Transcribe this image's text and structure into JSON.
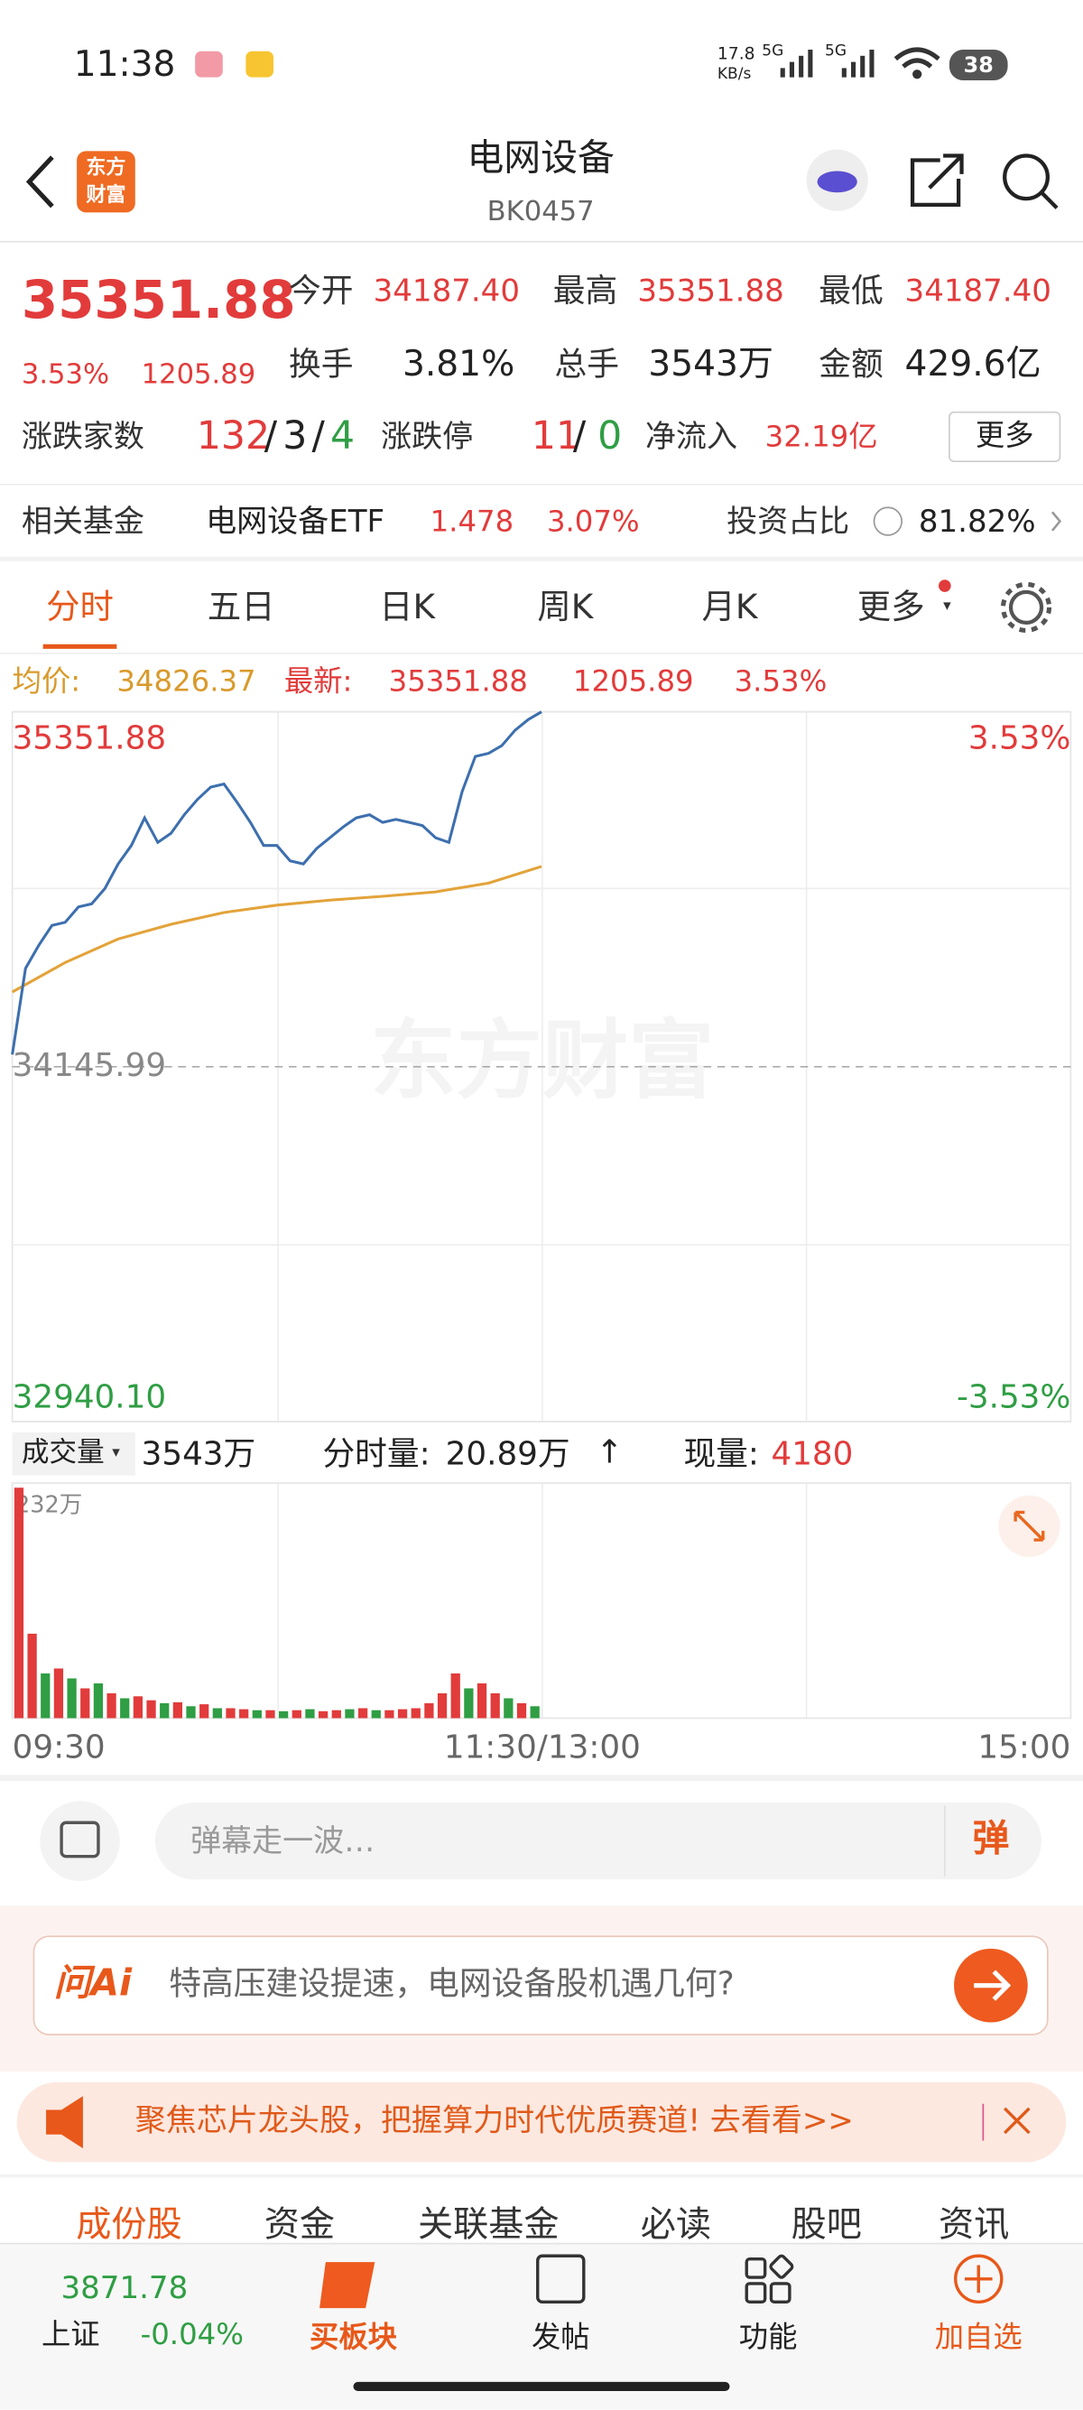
{
  "status_bar": {
    "time": "11:38",
    "net_speed": "17.8",
    "net_unit": "KB/s",
    "signal_1": "5G",
    "signal_2": "5G",
    "battery": "38"
  },
  "header": {
    "logo_top": "东方",
    "logo_bottom": "财富",
    "title": "电网设备",
    "code": "BK0457"
  },
  "quote": {
    "price": "35351.88",
    "change_pct": "3.53%",
    "change": "1205.89",
    "open_label": "今开",
    "open": "34187.40",
    "high_label": "最高",
    "high": "35351.88",
    "low_label": "最低",
    "low": "34187.40",
    "turnover_label": "换手",
    "turnover": "3.81%",
    "volume_label": "总手",
    "volume": "3543万",
    "amount_label": "金额",
    "amount": "429.6亿",
    "breadth_label": "涨跌家数",
    "up_count": "132",
    "separator": "/",
    "flat_count": "3",
    "down_count": "4",
    "limit_label": "涨跌停",
    "limit_up": "11",
    "limit_down": "0",
    "inflow_label": "净流入",
    "inflow": "32.19亿",
    "more": "更多"
  },
  "fund": {
    "label": "相关基金",
    "name": "电网设备ETF",
    "price": "1.478",
    "pct": "3.07%",
    "ratio_label": "投资占比",
    "ratio": "81.82%"
  },
  "tabs": [
    "分时",
    "五日",
    "日K",
    "周K",
    "月K",
    "更多"
  ],
  "intraday": {
    "avg_label": "均价:",
    "avg_value": "34826.37",
    "latest_label": "最新:",
    "latest": "35351.88",
    "change": "1205.89",
    "pct": "3.53%",
    "y_top_label": "35351.88",
    "y_mid_label": "34145.99",
    "y_bottom_label": "32940.10",
    "pct_top_label": "3.53%",
    "pct_bottom_label": "-3.53%",
    "watermark": "东方财富",
    "ylim": [
      32940.1,
      35351.88
    ],
    "prev_close": 34145.99,
    "price": [
      34187.4,
      34480.1,
      34558.4,
      34626.2,
      34636.7,
      34688.9,
      34699.3,
      34751.5,
      34835.0,
      34897.7,
      34991.6,
      34908.1,
      34939.4,
      35002.1,
      35054.3,
      35096.0,
      35106.5,
      35043.8,
      34976.0,
      34897.7,
      34897.7,
      34845.5,
      34835.0,
      34887.2,
      34923.8,
      34960.3,
      34991.6,
      35002.1,
      34976.0,
      34986.4,
      34976.0,
      34965.5,
      34923.8,
      34908.1,
      35080.4,
      35200.4,
      35210.9,
      35237.0,
      35289.2,
      35325.7,
      35351.88
    ],
    "price_color": "#3d6fae",
    "avg": [
      34400,
      34500,
      34580,
      34630,
      34670,
      34695,
      34712,
      34725,
      34740,
      34770,
      34826.37
    ],
    "avg_color": "#e3a33a"
  },
  "volume": {
    "label": "成交量",
    "total": "3543万",
    "minute_label": "分时量:",
    "minute_value": "20.89万",
    "arrow": "↑",
    "current_label": "现量:",
    "current": "4180",
    "max_label": "232万",
    "values": [
      232,
      85,
      45,
      50,
      40,
      30,
      35,
      25,
      20,
      22,
      18,
      15,
      16,
      12,
      14,
      10,
      10,
      9,
      8,
      8,
      7,
      8,
      9,
      7,
      8,
      9,
      10,
      8,
      8,
      9,
      10,
      15,
      25,
      45,
      30,
      35,
      25,
      20,
      15,
      12
    ],
    "up": [
      1,
      1,
      0,
      1,
      0,
      1,
      0,
      1,
      0,
      1,
      1,
      0,
      1,
      0,
      1,
      0,
      1,
      1,
      0,
      1,
      0,
      1,
      0,
      1,
      1,
      0,
      1,
      0,
      1,
      1,
      1,
      1,
      1,
      1,
      0,
      1,
      1,
      0,
      1,
      0
    ]
  },
  "time_axis": [
    "09:30",
    "11:30/13:00",
    "15:00"
  ],
  "comment": {
    "placeholder": "弹幕走一波…",
    "button": "弹"
  },
  "ai": {
    "logo": "问Ai",
    "question": "特高压建设提速，电网设备股机遇几何?"
  },
  "banner": {
    "text": "聚焦芯片龙头股，把握算力时代优质赛道! 去看看>>"
  },
  "sub_tabs": [
    "成份股",
    "资金",
    "关联基金",
    "必读",
    "股吧",
    "资讯"
  ],
  "bottom_nav": {
    "index_value": "3871.78",
    "index_name": "上证",
    "index_change": "-0.04%",
    "items": [
      "买板块",
      "发帖",
      "功能",
      "加自选"
    ]
  }
}
